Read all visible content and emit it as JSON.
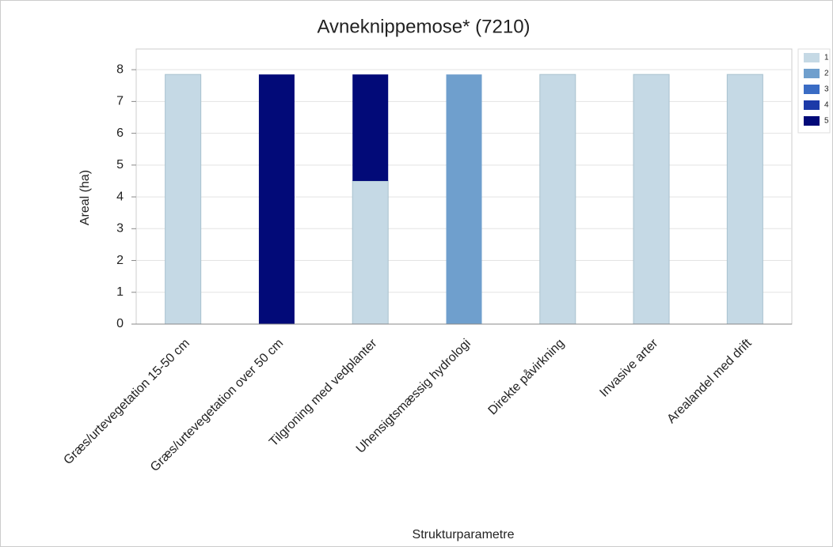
{
  "chart_data": {
    "type": "bar",
    "stacked": true,
    "title": "Avneknippemose* (7210)",
    "x_label": "Strukturparametre",
    "y_label": "Areal (ha)",
    "categories": [
      "Græs/urtevegetation 15-50 cm",
      "Græs/urtevegetation over 50 cm",
      "Tilgroning med vedplanter",
      "Uhensigtsmæssig hydrologi",
      "Direkte påvirkning",
      "Invasive arter",
      "Arealandel med drift"
    ],
    "series": [
      {
        "name": "1",
        "color": "#c5d9e5",
        "values": [
          7.85,
          0,
          4.5,
          0,
          7.85,
          7.85,
          7.85
        ]
      },
      {
        "name": "2",
        "color": "#6f9fcd",
        "values": [
          0,
          0,
          0,
          7.85,
          0,
          0,
          0
        ]
      },
      {
        "name": "3",
        "color": "#3a6cc4",
        "values": [
          0,
          0,
          0,
          0,
          0,
          0,
          0
        ]
      },
      {
        "name": "4",
        "color": "#1c3aa8",
        "values": [
          0,
          0,
          0,
          0,
          0,
          0,
          0
        ]
      },
      {
        "name": "5",
        "color": "#020a78",
        "values": [
          0,
          7.85,
          3.35,
          0,
          0,
          0,
          0
        ]
      }
    ],
    "ylim": [
      0,
      8.65
    ],
    "yticks": [
      0,
      1,
      2,
      3,
      4,
      5,
      6,
      7,
      8
    ],
    "grid": true,
    "legend": "right"
  }
}
